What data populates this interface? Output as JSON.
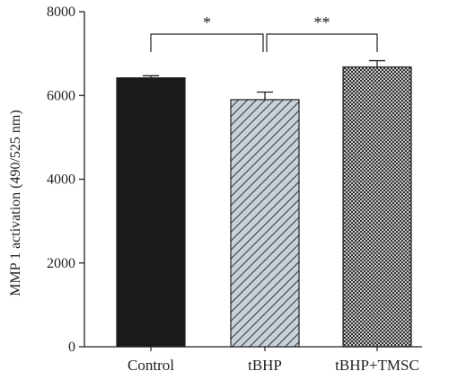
{
  "chart_data": {
    "type": "bar",
    "ylabel": "MMP 1 activation (490/525 nm)",
    "xlabel": "",
    "title": "",
    "categories": [
      "Control",
      "tBHP",
      "tBHP+TMSC"
    ],
    "values": [
      6420,
      5900,
      6680
    ],
    "errors": [
      50,
      180,
      150
    ],
    "ylim": [
      0,
      8000
    ],
    "yticks": [
      0,
      2000,
      4000,
      6000,
      8000
    ],
    "ytick_labels": [
      "0",
      "2000",
      "4000",
      "6000",
      "8000"
    ],
    "fills": [
      "solid",
      "diagonal-hatch",
      "crosshatch"
    ],
    "colors": {
      "solid": "#1a1a1a",
      "hatch_fg": "#333333",
      "hatch_bg": "#c8d0d8",
      "cross_bg": "#ffffff"
    },
    "significance": [
      {
        "between": [
          0,
          1
        ],
        "label": "*"
      },
      {
        "between": [
          1,
          2
        ],
        "label": "**"
      }
    ],
    "grid": false
  }
}
